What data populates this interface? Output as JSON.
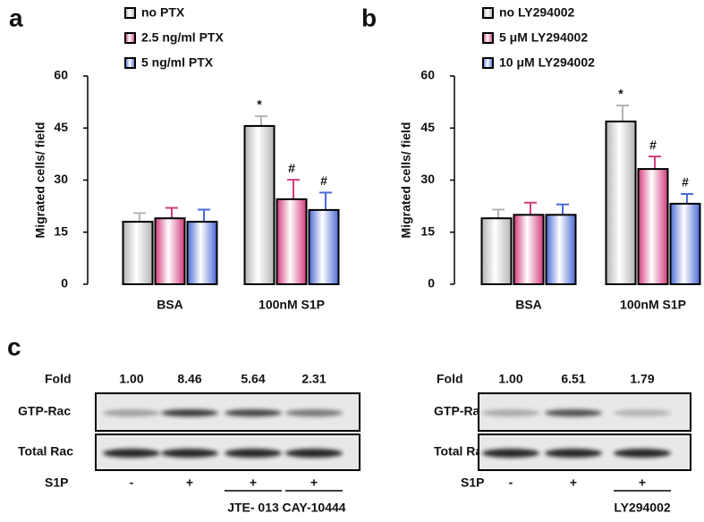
{
  "panels": [
    "a",
    "b",
    "c"
  ],
  "chart_data": [
    {
      "type": "bar",
      "y_label": "Migrated cells/ field",
      "categories": [
        "BSA",
        "100nM  S1P"
      ],
      "series": [
        {
          "name": "no PTX",
          "color": "#b4b4b4",
          "values": [
            18,
            45.6
          ],
          "errors": [
            2.5,
            2.8
          ],
          "markers": [
            null,
            "*"
          ]
        },
        {
          "name": "2.5 ng/ml PTX",
          "color": "#d23c7c",
          "values": [
            19,
            24.5
          ],
          "errors": [
            3,
            5.6
          ],
          "markers": [
            null,
            "#"
          ]
        },
        {
          "name": "5 ng/ml PTX",
          "color": "#4a6ad4",
          "values": [
            18,
            21.4
          ],
          "errors": [
            3.5,
            5
          ],
          "markers": [
            null,
            "#"
          ]
        }
      ],
      "ylim": [
        0,
        60
      ],
      "yticks": [
        0,
        15,
        30,
        45,
        60
      ]
    },
    {
      "type": "bar",
      "y_label": "Migrated cells/ field",
      "categories": [
        "BSA",
        "100nM  S1P"
      ],
      "series": [
        {
          "name": "no LY294002",
          "color": "#b4b4b4",
          "values": [
            19,
            46.9
          ],
          "errors": [
            2.5,
            4.6
          ],
          "markers": [
            null,
            "*"
          ]
        },
        {
          "name": "5 μM LY294002",
          "color": "#d23c7c",
          "values": [
            20,
            33.2
          ],
          "errors": [
            3.5,
            3.6
          ],
          "markers": [
            null,
            "#"
          ]
        },
        {
          "name": "10 μM LY294002",
          "color": "#4a6ad4",
          "values": [
            20,
            23.2
          ],
          "errors": [
            3,
            2.8
          ],
          "markers": [
            null,
            "#"
          ]
        }
      ],
      "ylim": [
        0,
        60
      ],
      "yticks": [
        0,
        15,
        30,
        45,
        60
      ]
    }
  ],
  "blots": [
    {
      "fold_label": "Fold",
      "fold": [
        "1.00",
        "8.46",
        "5.64",
        "2.31"
      ],
      "rows": [
        "GTP-Rac",
        "Total Rac"
      ],
      "treatment_label": "S1P",
      "treatment": [
        "-",
        "+",
        "+",
        "+"
      ],
      "inhibitors": [
        null,
        null,
        "JTE- 013",
        "CAY-10444"
      ]
    },
    {
      "fold_label": "Fold",
      "fold": [
        "1.00",
        "6.51",
        "1.79"
      ],
      "rows": [
        "GTP-Rac",
        "Total Rac"
      ],
      "treatment_label": "S1P",
      "treatment": [
        "-",
        "+",
        "+"
      ],
      "inhibitors": [
        null,
        null,
        "LY294002"
      ]
    }
  ]
}
